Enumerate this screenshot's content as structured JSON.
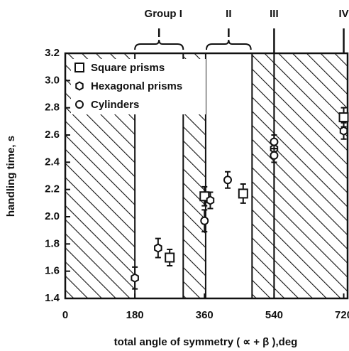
{
  "chart_data": {
    "type": "scatter",
    "xlabel": "total angle of symmetry ( ∝ + β ),deg",
    "ylabel": "handling time, s",
    "xlim": [
      0,
      730
    ],
    "ylim": [
      1.4,
      3.2
    ],
    "xticks": [
      0,
      180,
      360,
      540,
      720
    ],
    "yticks": [
      1.4,
      1.6,
      1.8,
      {
        "value": 2,
        "label": "2.0"
      },
      2.2,
      2.4,
      2.6,
      2.8,
      {
        "value": 3,
        "label": "3.0"
      },
      3.2
    ],
    "hatched_regions": [
      [
        0,
        180
      ],
      [
        305,
        363
      ],
      [
        483,
        540
      ],
      [
        540,
        730
      ]
    ],
    "groups": [
      {
        "label": "Group I",
        "range": [
          180,
          305
        ]
      },
      {
        "label": "II",
        "range": [
          365,
          480
        ]
      },
      {
        "label": "III",
        "x": 540
      },
      {
        "label": "IV",
        "x": 720
      }
    ],
    "legend": "upper left",
    "series": [
      {
        "name": "Square prisms",
        "marker": "square",
        "color": "#111",
        "x": [
          270,
          360,
          460,
          720
        ],
        "values": [
          1.7,
          2.15,
          2.17,
          2.73
        ],
        "errors": [
          0.06,
          0.07,
          0.07,
          0.07
        ]
      },
      {
        "name": "Hexagonal prisms",
        "marker": "hexagon",
        "color": "#111",
        "x": [
          180,
          240,
          375,
          540,
          720
        ],
        "values": [
          1.55,
          1.77,
          2.12,
          2.5,
          2.63
        ],
        "errors": [
          0.08,
          0.07,
          0.06,
          0.05,
          0.06
        ]
      },
      {
        "name": "Cylinders",
        "marker": "circle",
        "color": "#111",
        "x": [
          360,
          420,
          540,
          540
        ],
        "values": [
          1.97,
          2.27,
          2.55,
          2.45
        ],
        "errors": [
          0.08,
          0.06,
          0.05,
          0.05
        ]
      }
    ]
  }
}
